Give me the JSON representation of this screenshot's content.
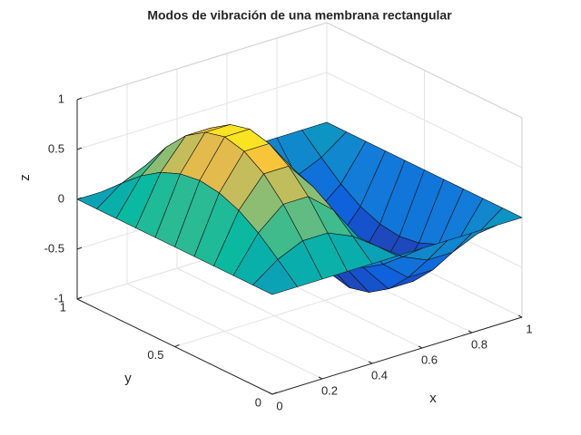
{
  "chart_data": {
    "type": "surface",
    "title": "Modos de vibración de una membrana rectangular",
    "xlabel": "x",
    "ylabel": "y",
    "zlabel": "z",
    "x": [
      0,
      0.1,
      0.2,
      0.3,
      0.4,
      0.5,
      0.6,
      0.7,
      0.8,
      0.9,
      1
    ],
    "y": [
      0,
      0.1,
      0.2,
      0.3,
      0.4,
      0.5,
      0.6,
      0.7,
      0.8,
      0.9,
      1
    ],
    "z": [
      [
        0,
        0,
        0,
        0,
        0,
        0,
        0,
        0,
        0,
        0,
        0
      ],
      [
        0,
        0.18,
        0.29,
        0.29,
        0.18,
        0,
        -0.18,
        -0.29,
        -0.29,
        -0.18,
        0
      ],
      [
        0,
        0.35,
        0.56,
        0.56,
        0.35,
        0,
        -0.35,
        -0.56,
        -0.56,
        -0.35,
        0
      ],
      [
        0,
        0.48,
        0.77,
        0.77,
        0.48,
        0,
        -0.48,
        -0.77,
        -0.77,
        -0.48,
        0
      ],
      [
        0,
        0.56,
        0.9,
        0.9,
        0.56,
        0,
        -0.56,
        -0.9,
        -0.9,
        -0.56,
        0
      ],
      [
        0,
        0.59,
        0.95,
        0.95,
        0.59,
        0,
        -0.59,
        -0.95,
        -0.95,
        -0.59,
        0
      ],
      [
        0,
        0.56,
        0.9,
        0.9,
        0.56,
        0,
        -0.56,
        -0.9,
        -0.9,
        -0.56,
        0
      ],
      [
        0,
        0.48,
        0.77,
        0.77,
        0.48,
        0,
        -0.48,
        -0.77,
        -0.77,
        -0.48,
        0
      ],
      [
        0,
        0.35,
        0.56,
        0.56,
        0.35,
        0,
        -0.35,
        -0.56,
        -0.56,
        -0.35,
        0
      ],
      [
        0,
        0.18,
        0.29,
        0.29,
        0.18,
        0,
        -0.18,
        -0.29,
        -0.29,
        -0.18,
        0
      ],
      [
        0,
        0,
        0,
        0,
        0,
        0,
        0,
        0,
        0,
        0,
        0
      ]
    ],
    "xlim": [
      0,
      1
    ],
    "ylim": [
      0,
      1
    ],
    "zlim": [
      -1,
      1
    ],
    "xticks": [
      0,
      0.2,
      0.4,
      0.6,
      0.8,
      1
    ],
    "yticks": [
      0,
      0.5,
      1
    ],
    "zticks": [
      -1,
      -0.5,
      0,
      0.5,
      1
    ],
    "grid": true
  }
}
